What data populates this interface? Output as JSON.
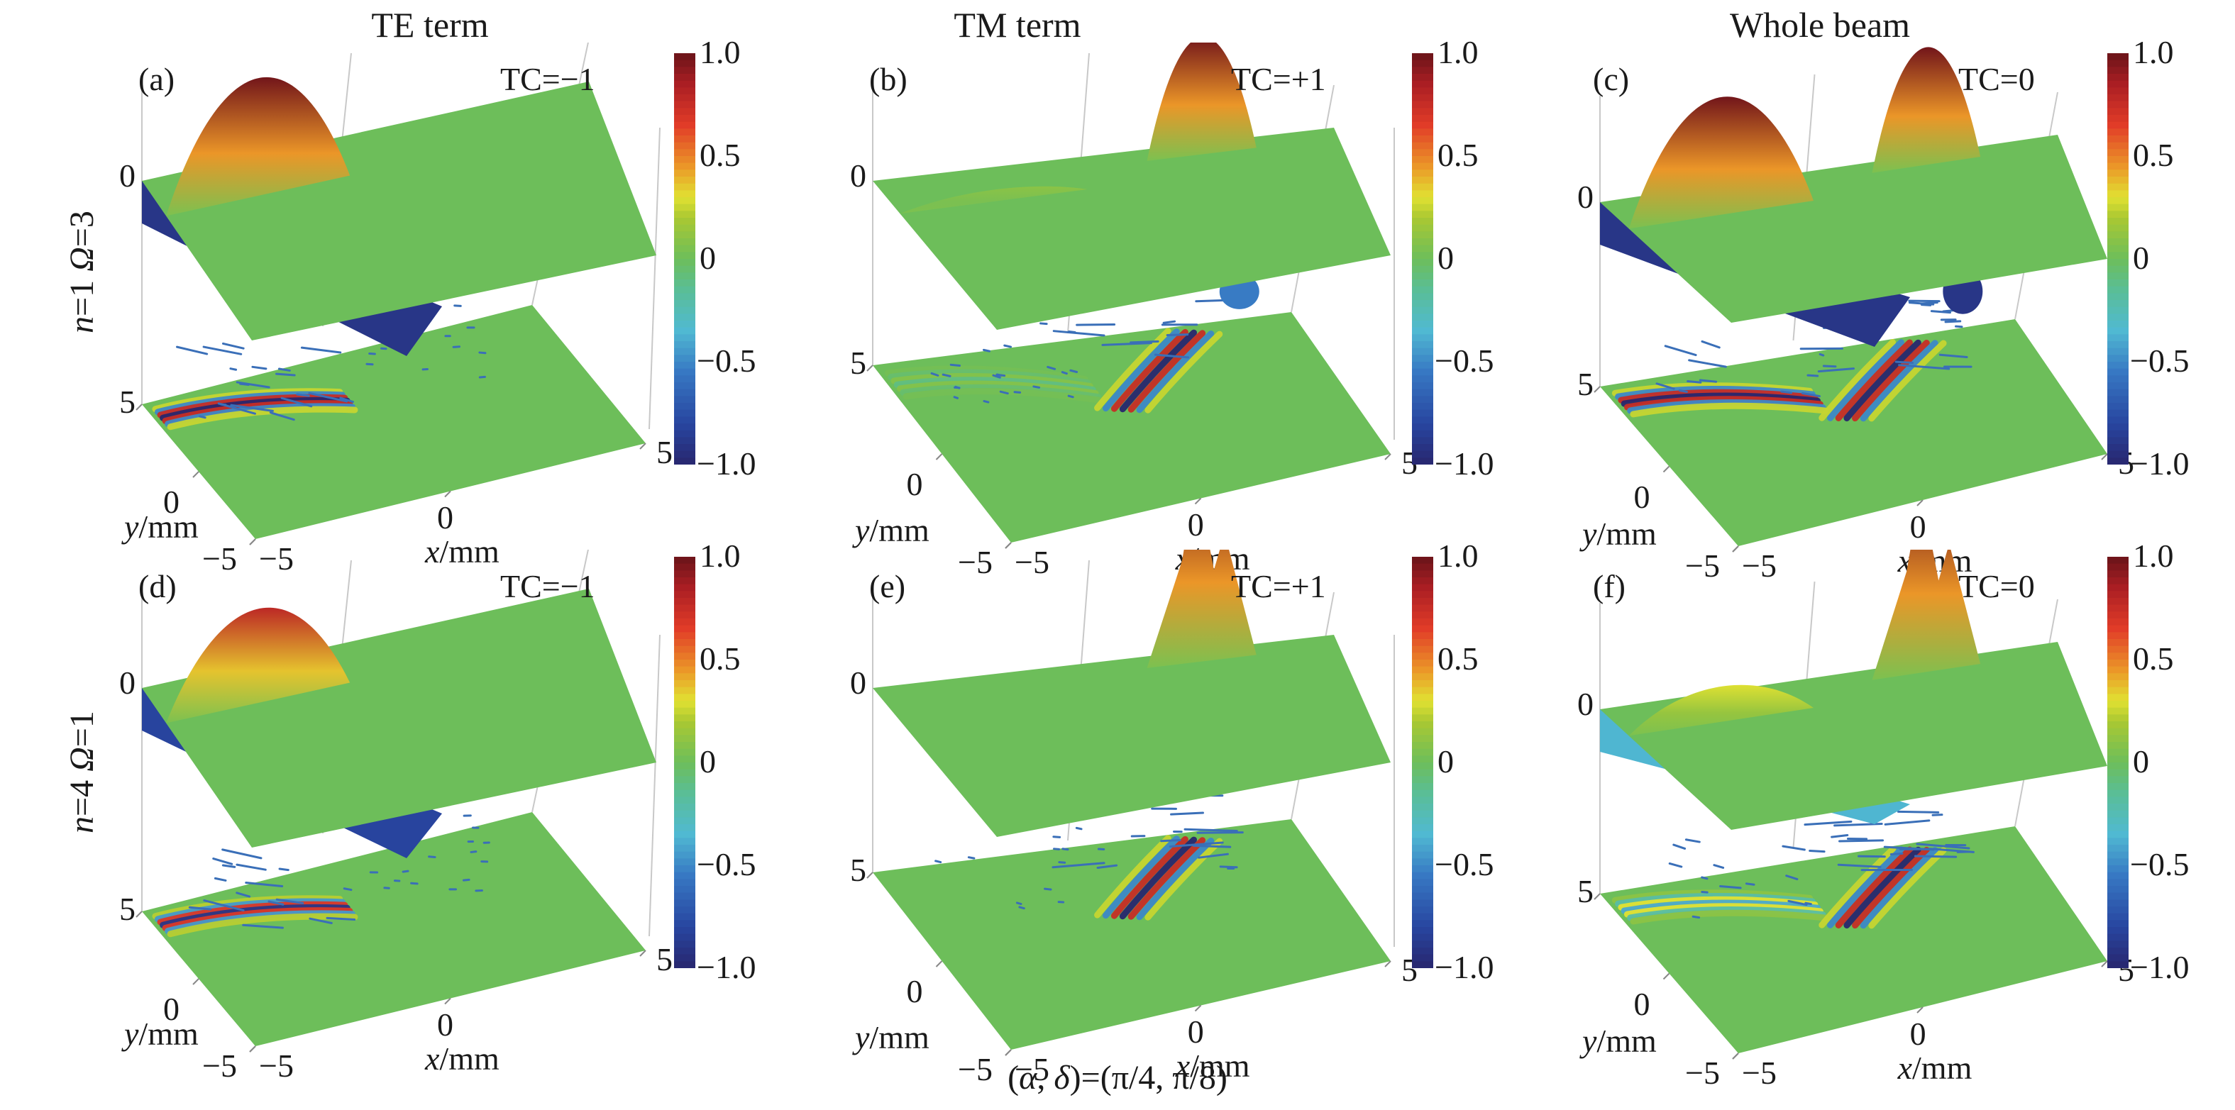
{
  "chart_data": {
    "type": "heatmap",
    "title": "",
    "columns": [
      "TE term",
      "TM term",
      "Whole beam"
    ],
    "rows": [
      {
        "label_n": "n",
        "n_value": "=1",
        "label_omega": "Ω",
        "omega_value": "=3"
      },
      {
        "label_n": "n",
        "n_value": "=4",
        "label_omega": "Ω",
        "omega_value": "=1"
      }
    ],
    "panels": [
      {
        "id": "(a)",
        "tc": "TC=−1",
        "column": 0,
        "row": 0,
        "features": {
          "left_lobe": 1.0,
          "right_lobe": 0.05,
          "left_dip": -1.0,
          "right_dip": 0.0,
          "peaked": false
        }
      },
      {
        "id": "(b)",
        "tc": "TC=+1",
        "column": 1,
        "row": 0,
        "features": {
          "left_lobe": 0.1,
          "right_lobe": 1.0,
          "left_dip": 0.0,
          "right_dip": -0.6,
          "peaked": false
        }
      },
      {
        "id": "(c)",
        "tc": "TC=0",
        "column": 2,
        "row": 0,
        "features": {
          "left_lobe": 1.0,
          "right_lobe": 1.0,
          "left_dip": -1.0,
          "right_dip": -1.0,
          "peaked": false
        }
      },
      {
        "id": "(d)",
        "tc": "TC=−1",
        "column": 0,
        "row": 1,
        "features": {
          "left_lobe": 0.8,
          "right_lobe": 0.05,
          "left_dip": -0.9,
          "right_dip": 0.0,
          "peaked": false
        }
      },
      {
        "id": "(e)",
        "tc": "TC=+1",
        "column": 1,
        "row": 1,
        "features": {
          "left_lobe": 0.05,
          "right_lobe": 1.0,
          "left_dip": 0.0,
          "right_dip": 0.0,
          "peaked": true
        }
      },
      {
        "id": "(f)",
        "tc": "TC=0",
        "column": 2,
        "row": 1,
        "features": {
          "left_lobe": 0.3,
          "right_lobe": 1.0,
          "left_dip": -0.4,
          "right_dip": 0.0,
          "peaked": true
        }
      }
    ],
    "x_axis": {
      "label_var": "x",
      "label_unit": "/mm",
      "ticks": [
        "−5",
        "0",
        "5"
      ],
      "range": [
        -5,
        5
      ]
    },
    "y_axis": {
      "label_var": "y",
      "label_unit": "/mm",
      "ticks": [
        "−5",
        "0",
        "5"
      ],
      "range": [
        -5,
        5
      ]
    },
    "z_axis": {
      "ticks": [
        "0"
      ]
    },
    "colorbar": {
      "ticks": [
        "1.0",
        "0.5",
        "0",
        "−0.5",
        "−1.0"
      ],
      "tick_values": [
        1.0,
        0.5,
        0,
        -0.5,
        -1.0
      ],
      "range": [
        -1.0,
        1.0
      ],
      "colormap": "jet-like (dark blue → cyan → green → yellow → red → dark red)"
    },
    "footer": "(α, δ)=(π/4, π/8)",
    "footer_parts": {
      "open": "(",
      "alpha": "α",
      "sep": ", ",
      "delta": "δ",
      "rest": ")=(π/4, π/8)"
    }
  },
  "colors": {
    "plane_green": "#6dbe5a",
    "arrow_blue": "#3a6fb8",
    "axis_gray": "#c8c8c8"
  }
}
